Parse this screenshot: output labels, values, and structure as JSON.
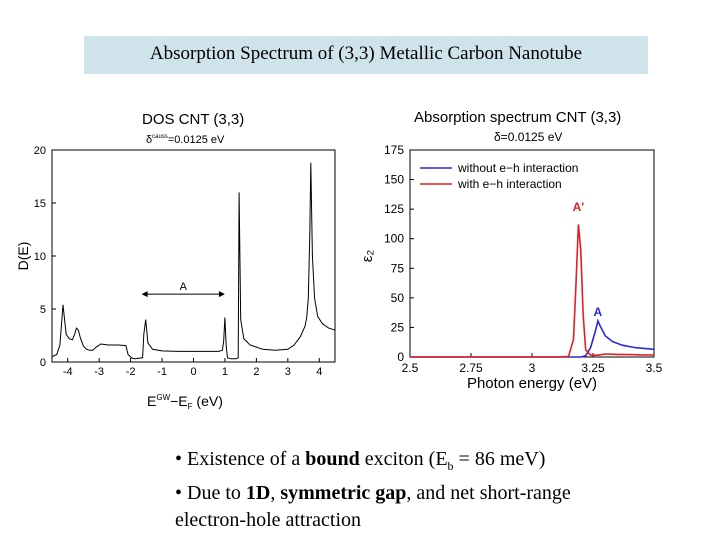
{
  "slide": {
    "title": "Absorption Spectrum of (3,3) Metallic Carbon Nanotube",
    "bullets": {
      "b1_pre": "• Existence of a ",
      "b1_bold": "bound",
      "b1_mid": " exciton (E",
      "b1_sub": "b",
      "b1_post": " = 86 meV)",
      "b2_pre": "• Due to ",
      "b2_bold1": "1D",
      "b2_sep": ", ",
      "b2_bold2": "symmetric gap",
      "b2_post": ", and net short-range",
      "b2_line2": "electron-hole attraction"
    }
  },
  "chart_data": [
    {
      "type": "line",
      "title": "DOS CNT (3,3)",
      "subtitle_symbol": "δ",
      "subtitle_sup": "causs",
      "subtitle_rest": "=0.0125 eV",
      "xlabel_main": "E",
      "xlabel_sup": "GW",
      "xlabel_mid": "−E",
      "xlabel_sub": "F",
      "xlabel_unit": " (eV)",
      "ylabel": "D(E)",
      "xlim": [
        -4.5,
        4.5
      ],
      "ylim": [
        0,
        20
      ],
      "xticks": [
        -4,
        -3,
        -2,
        -1,
        0,
        1,
        2,
        3,
        4
      ],
      "yticks": [
        0,
        5,
        10,
        15,
        20
      ],
      "annotation": {
        "text": "A",
        "from_x": -1.65,
        "to_x": 1.0,
        "y": 6.4
      },
      "series": [
        {
          "color": "#000000",
          "points": [
            [
              -4.5,
              0.5
            ],
            [
              -4.35,
              0.7
            ],
            [
              -4.25,
              1.6
            ],
            [
              -4.15,
              5.4
            ],
            [
              -4.05,
              2.6
            ],
            [
              -3.95,
              2.2
            ],
            [
              -3.85,
              2.1
            ],
            [
              -3.78,
              2.6
            ],
            [
              -3.72,
              3.2
            ],
            [
              -3.66,
              3.0
            ],
            [
              -3.6,
              2.3
            ],
            [
              -3.5,
              1.5
            ],
            [
              -3.4,
              1.2
            ],
            [
              -3.3,
              1.1
            ],
            [
              -3.2,
              1.1
            ],
            [
              -3.1,
              1.4
            ],
            [
              -3.02,
              1.55
            ],
            [
              -2.95,
              1.7
            ],
            [
              -2.7,
              1.6
            ],
            [
              -2.4,
              1.6
            ],
            [
              -2.15,
              1.55
            ],
            [
              -2.08,
              0.7
            ],
            [
              -1.95,
              0.35
            ],
            [
              -1.85,
              0.3
            ],
            [
              -1.75,
              0.35
            ],
            [
              -1.62,
              0.4
            ],
            [
              -1.58,
              2.6
            ],
            [
              -1.52,
              4.0
            ],
            [
              -1.45,
              1.8
            ],
            [
              -1.3,
              1.2
            ],
            [
              -1.0,
              1.05
            ],
            [
              -0.5,
              1.0
            ],
            [
              0.0,
              1.0
            ],
            [
              0.5,
              1.0
            ],
            [
              0.8,
              1.0
            ],
            [
              0.92,
              1.1
            ],
            [
              0.96,
              2.0
            ],
            [
              1.0,
              4.2
            ],
            [
              1.04,
              1.5
            ],
            [
              1.08,
              0.4
            ],
            [
              1.2,
              0.3
            ],
            [
              1.35,
              0.3
            ],
            [
              1.42,
              0.4
            ],
            [
              1.45,
              16.0
            ],
            [
              1.5,
              4.0
            ],
            [
              1.6,
              2.2
            ],
            [
              1.8,
              1.6
            ],
            [
              2.2,
              1.2
            ],
            [
              2.6,
              1.1
            ],
            [
              3.0,
              1.2
            ],
            [
              3.2,
              1.6
            ],
            [
              3.4,
              2.4
            ],
            [
              3.55,
              3.4
            ],
            [
              3.6,
              4.2
            ],
            [
              3.65,
              6.0
            ],
            [
              3.7,
              12.0
            ],
            [
              3.73,
              18.8
            ],
            [
              3.78,
              10.0
            ],
            [
              3.85,
              6.0
            ],
            [
              3.95,
              4.3
            ],
            [
              4.1,
              3.6
            ],
            [
              4.3,
              3.2
            ],
            [
              4.5,
              3.0
            ]
          ]
        }
      ]
    },
    {
      "type": "line",
      "title": "Absorption spectrum CNT (3,3)",
      "subtitle": "δ=0.0125 eV",
      "xlabel": "Photon energy (eV)",
      "ylabel": "ε₂",
      "xlim": [
        2.5,
        3.5
      ],
      "ylim": [
        0,
        175
      ],
      "xticks": [
        2.5,
        2.75,
        3,
        3.25,
        3.5
      ],
      "xtick_labels": [
        "2.5",
        "2.75",
        "3",
        "3.25",
        "3.5"
      ],
      "yticks": [
        0,
        25,
        50,
        75,
        100,
        125,
        150,
        175
      ],
      "peak_labels": [
        {
          "text": "A'",
          "x": 3.19,
          "y": 121,
          "color": "#d62020"
        },
        {
          "text": "A",
          "x": 3.27,
          "y": 32,
          "color": "#2a2ad8"
        }
      ],
      "legend_position": "top-left",
      "series": [
        {
          "name": "without e−h interaction",
          "color": "#2a2ad8",
          "points": [
            [
              2.5,
              0
            ],
            [
              3.0,
              0
            ],
            [
              3.15,
              0
            ],
            [
              3.2,
              0
            ],
            [
              3.22,
              1.0
            ],
            [
              3.24,
              8.0
            ],
            [
              3.26,
              22.0
            ],
            [
              3.27,
              30.5
            ],
            [
              3.28,
              26.0
            ],
            [
              3.3,
              18.0
            ],
            [
              3.33,
              13.0
            ],
            [
              3.37,
              10.0
            ],
            [
              3.42,
              8.0
            ],
            [
              3.47,
              7.0
            ],
            [
              3.5,
              6.5
            ]
          ]
        },
        {
          "name": "with e−h interaction",
          "color": "#e02020",
          "points": [
            [
              2.5,
              0
            ],
            [
              3.1,
              0
            ],
            [
              3.15,
              0.5
            ],
            [
              3.17,
              15.0
            ],
            [
              3.18,
              60.0
            ],
            [
              3.19,
              112.0
            ],
            [
              3.2,
              90.0
            ],
            [
              3.21,
              35.0
            ],
            [
              3.22,
              6.0
            ],
            [
              3.24,
              1.5
            ],
            [
              3.27,
              1.5
            ],
            [
              3.3,
              2.5
            ],
            [
              3.35,
              2.2
            ],
            [
              3.4,
              2.0
            ],
            [
              3.45,
              1.8
            ],
            [
              3.5,
              1.7
            ]
          ]
        }
      ]
    }
  ]
}
